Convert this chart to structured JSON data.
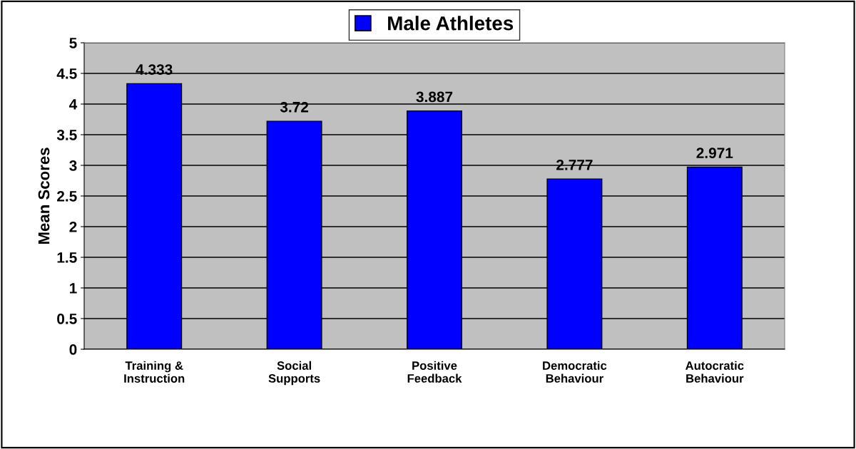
{
  "chart_data": {
    "type": "bar",
    "ylabel": "Mean Scores",
    "categories": [
      "Training &\nInstruction",
      "Social\nSupports",
      "Positive\nFeedback",
      "Democratic\nBehaviour",
      "Autocratic\nBehaviour"
    ],
    "series": [
      {
        "name": "Male Athletes",
        "color": "#0000ff",
        "values": [
          4.333,
          3.72,
          3.887,
          2.777,
          2.971
        ]
      }
    ],
    "ylim": [
      0,
      5
    ],
    "yticks": [
      0,
      0.5,
      1,
      1.5,
      2,
      2.5,
      3,
      3.5,
      4,
      4.5,
      5
    ],
    "grid": "y",
    "legend": "top",
    "data_labels": true
  }
}
